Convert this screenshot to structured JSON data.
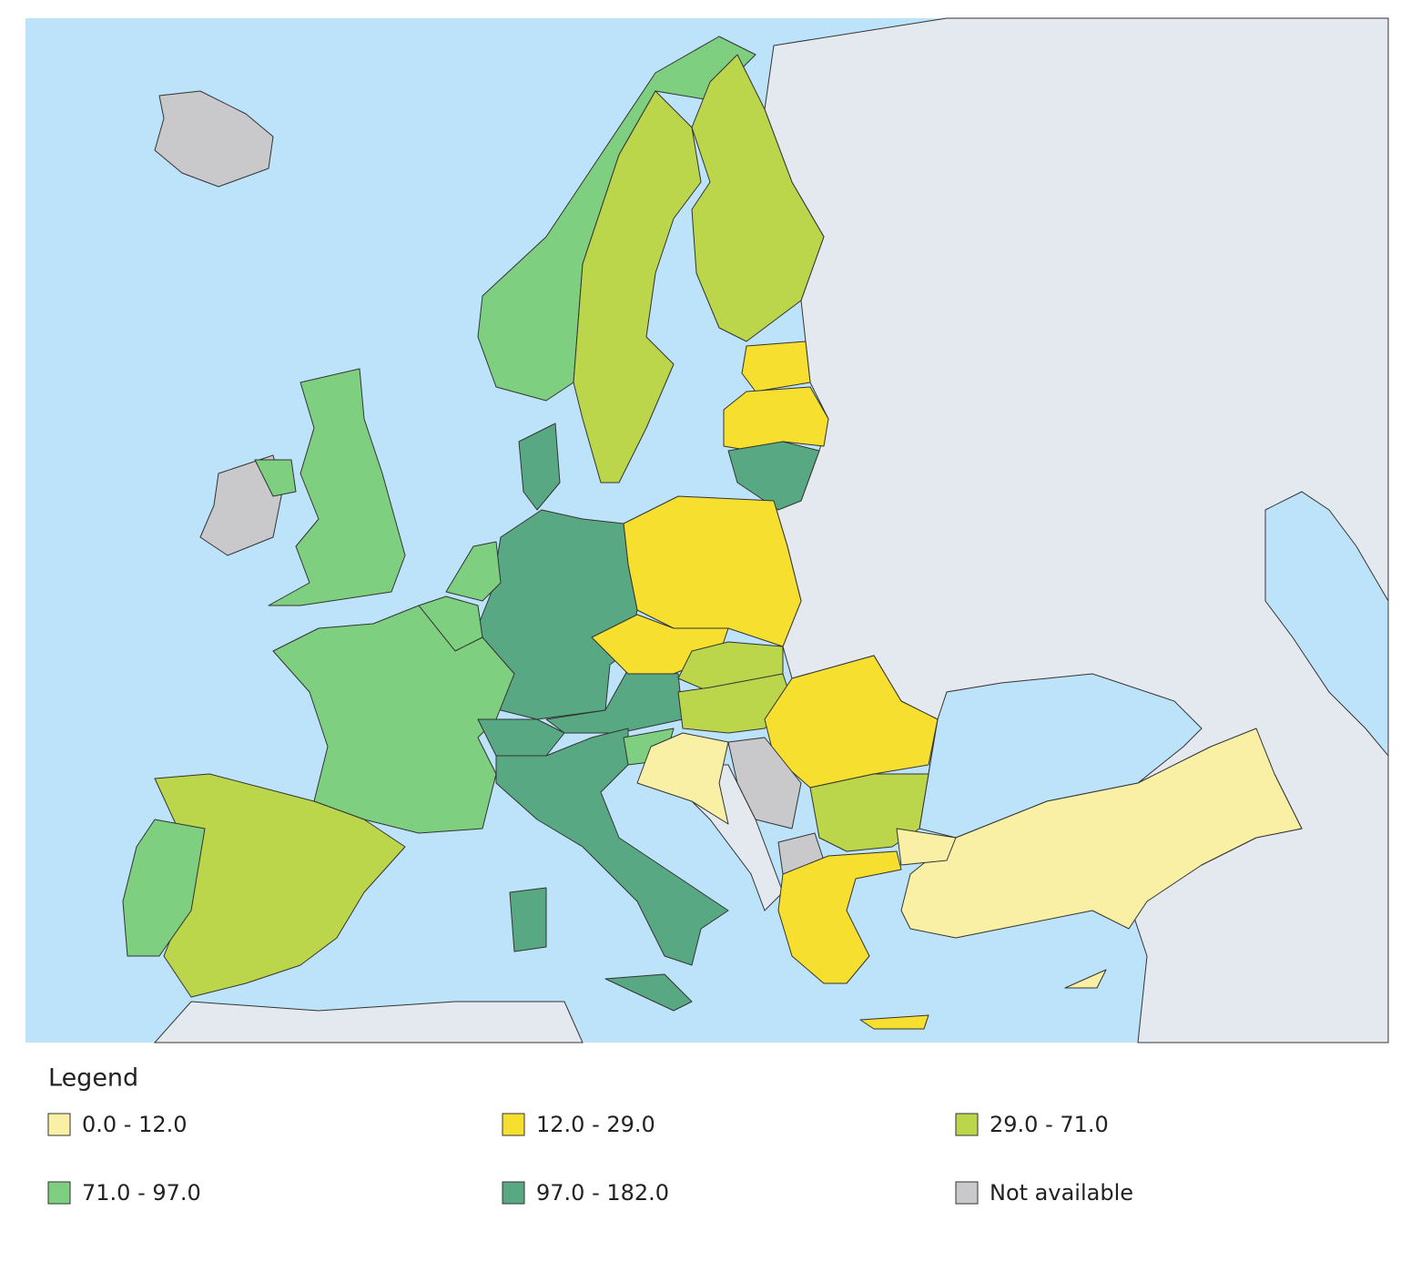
{
  "legend": {
    "title": "Legend",
    "items": [
      {
        "label": "0.0 - 12.0",
        "color": "#f9f0a6"
      },
      {
        "label": "12.0 - 29.0",
        "color": "#f6df2e"
      },
      {
        "label": "29.0 - 71.0",
        "color": "#bcd64c"
      },
      {
        "label": "71.0 - 97.0",
        "color": "#7ecf7f"
      },
      {
        "label": "97.0 - 182.0",
        "color": "#58a983"
      },
      {
        "label": "Not available",
        "color": "#c9c9cb"
      }
    ]
  }
}
